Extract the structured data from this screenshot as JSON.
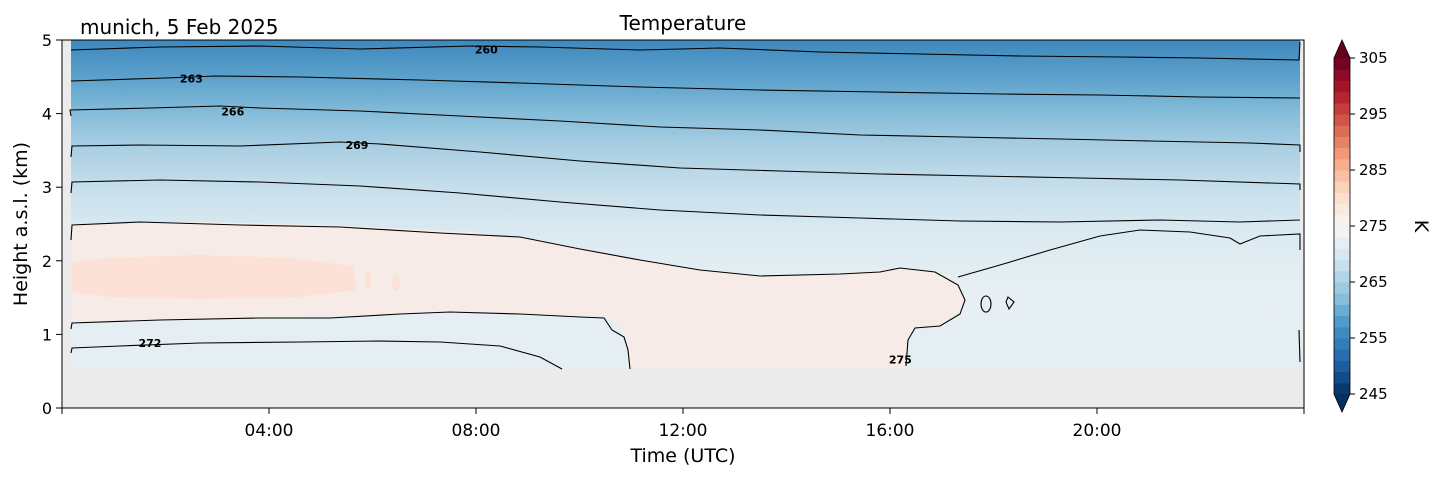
{
  "chart_data": {
    "type": "heatmap",
    "title": "Temperature",
    "subtitle": "munich, 5 Feb 2025",
    "xlabel": "Time (UTC)",
    "ylabel": "Height a.s.l. (km)",
    "xlim_hours": [
      0,
      24
    ],
    "ylim_km": [
      0,
      5
    ],
    "x_ticks": [
      {
        "hour": 4,
        "label": "04:00"
      },
      {
        "hour": 8,
        "label": "08:00"
      },
      {
        "hour": 12,
        "label": "12:00"
      },
      {
        "hour": 16,
        "label": "16:00"
      },
      {
        "hour": 20,
        "label": "20:00"
      }
    ],
    "y_ticks": [
      {
        "value": 0,
        "label": "0"
      },
      {
        "value": 1,
        "label": "1"
      },
      {
        "value": 2,
        "label": "2"
      },
      {
        "value": 3,
        "label": "3"
      },
      {
        "value": 4,
        "label": "4"
      },
      {
        "value": 5,
        "label": "5"
      }
    ],
    "data_bottom_km": 0.55,
    "colorbar": {
      "label": "K",
      "vmin": 245,
      "vmax": 305,
      "tick_values": [
        245,
        255,
        265,
        275,
        285,
        295,
        305
      ],
      "tick_labels": [
        "245",
        "255",
        "265",
        "275",
        "285",
        "295",
        "305"
      ],
      "extend": "both",
      "colormap": "RdBu_r"
    },
    "contours": [
      {
        "level": 260,
        "label": "260",
        "label_pos": {
          "hour": 8.2,
          "km": 4.87
        },
        "height_km": [
          [
            0.2,
            4.85
          ],
          [
            12,
            4.78
          ],
          [
            24,
            4.7
          ]
        ]
      },
      {
        "level": 263,
        "label": "263",
        "label_pos": {
          "hour": 2.5,
          "km": 4.48
        },
        "height_km": [
          [
            0.2,
            4.5
          ],
          [
            12,
            4.38
          ],
          [
            24,
            4.3
          ]
        ]
      },
      {
        "level": 266,
        "label": "266",
        "label_pos": {
          "hour": 3.3,
          "km": 4.03
        },
        "height_km": [
          [
            0.2,
            4.05
          ],
          [
            12,
            3.92
          ],
          [
            24,
            3.85
          ]
        ]
      },
      {
        "level": 269,
        "label": "269",
        "label_pos": {
          "hour": 5.7,
          "km": 3.57
        },
        "height_km": [
          [
            0.2,
            3.6
          ],
          [
            12,
            3.45
          ],
          [
            24,
            3.35
          ]
        ]
      },
      {
        "level": 270.5,
        "label": "",
        "height_km": [
          [
            0.2,
            3.05
          ],
          [
            12,
            2.98
          ],
          [
            24,
            3.0
          ]
        ]
      },
      {
        "level": 272,
        "label": "",
        "height_km": [
          [
            0.2,
            2.5
          ],
          [
            12,
            2.42
          ],
          [
            24,
            2.35
          ]
        ]
      },
      {
        "level": 272,
        "label": "272",
        "label_pos": {
          "hour": 1.7,
          "km": 0.88
        },
        "height_km": [
          [
            0.2,
            0.85
          ],
          [
            9.5,
            0.6
          ]
        ]
      },
      {
        "level": 275,
        "label": "275",
        "label_pos": {
          "hour": 16.2,
          "km": 0.66
        },
        "height_km": []
      }
    ],
    "field_regions": [
      {
        "temperature_K": 276,
        "hours": [
          0.2,
          6.5
        ],
        "km": [
          1.55,
          2.0
        ]
      },
      {
        "temperature_K": 274,
        "hours": [
          0.2,
          17.3
        ],
        "km": [
          0.55,
          2.5
        ]
      },
      {
        "temperature_K": 272,
        "hours": [
          0,
          24
        ],
        "km": [
          0.55,
          2.9
        ]
      },
      {
        "temperature_K": 268,
        "hours": [
          0,
          24
        ],
        "km": [
          2.9,
          3.6
        ]
      },
      {
        "temperature_K": 265,
        "hours": [
          0,
          24
        ],
        "km": [
          3.6,
          4.2
        ]
      },
      {
        "temperature_K": 262,
        "hours": [
          0,
          24
        ],
        "km": [
          4.2,
          4.6
        ]
      },
      {
        "temperature_K": 259,
        "hours": [
          0,
          24
        ],
        "km": [
          4.6,
          5.0
        ]
      }
    ]
  }
}
